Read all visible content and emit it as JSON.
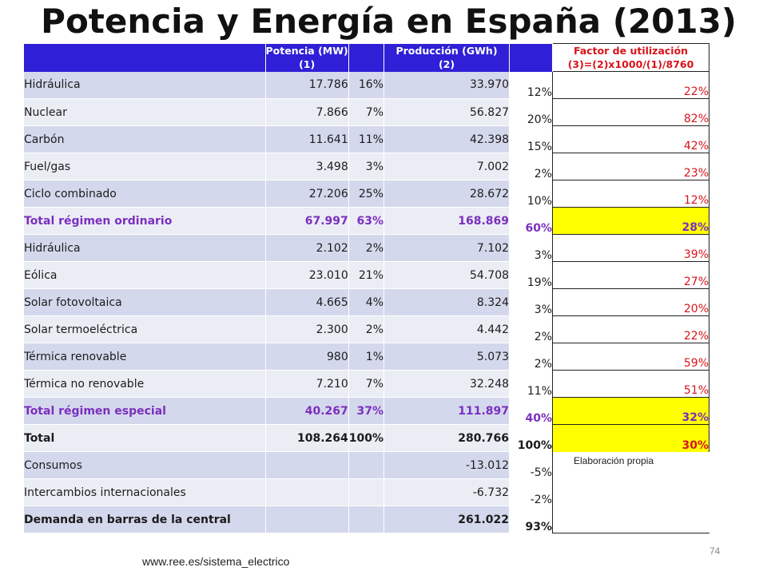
{
  "title": "Potencia y Energía en España (2013)",
  "header": {
    "col1": "",
    "potencia_line1": "Potencia (MW)",
    "potencia_line2": "(1)",
    "produccion_line1": "Producción (GWh)",
    "produccion_line2": "(2)",
    "factor_line1": "Factor de utilización",
    "factor_line2": "(3)=(2)x1000/(1)/8760"
  },
  "rows": [
    {
      "label": "Hidráulica",
      "mw": "17.786",
      "mw_pct": "16%",
      "gwh": "33.970",
      "gwh_pct": "12%",
      "factor": "22%"
    },
    {
      "label": "Nuclear",
      "mw": "7.866",
      "mw_pct": "7%",
      "gwh": "56.827",
      "gwh_pct": "20%",
      "factor": "82%"
    },
    {
      "label": "Carbón",
      "mw": "11.641",
      "mw_pct": "11%",
      "gwh": "42.398",
      "gwh_pct": "15%",
      "factor": "42%"
    },
    {
      "label": "Fuel/gas",
      "mw": "3.498",
      "mw_pct": "3%",
      "gwh": "7.002",
      "gwh_pct": "2%",
      "factor": "23%"
    },
    {
      "label": "Ciclo combinado",
      "mw": "27.206",
      "mw_pct": "25%",
      "gwh": "28.672",
      "gwh_pct": "10%",
      "factor": "12%"
    },
    {
      "label": "Total régimen ordinario",
      "mw": "67.997",
      "mw_pct": "63%",
      "gwh": "168.869",
      "gwh_pct": "60%",
      "factor": "28%"
    },
    {
      "label": "Hidráulica",
      "mw": "2.102",
      "mw_pct": "2%",
      "gwh": "7.102",
      "gwh_pct": "3%",
      "factor": "39%"
    },
    {
      "label": "Eólica",
      "mw": "23.010",
      "mw_pct": "21%",
      "gwh": "54.708",
      "gwh_pct": "19%",
      "factor": "27%"
    },
    {
      "label": "Solar fotovoltaica",
      "mw": "4.665",
      "mw_pct": "4%",
      "gwh": "8.324",
      "gwh_pct": "3%",
      "factor": "20%"
    },
    {
      "label": "Solar termoeléctrica",
      "mw": "2.300",
      "mw_pct": "2%",
      "gwh": "4.442",
      "gwh_pct": "2%",
      "factor": "22%"
    },
    {
      "label": "Térmica renovable",
      "mw": "980",
      "mw_pct": "1%",
      "gwh": "5.073",
      "gwh_pct": "2%",
      "factor": "59%"
    },
    {
      "label": "Térmica no renovable",
      "mw": "7.210",
      "mw_pct": "7%",
      "gwh": "32.248",
      "gwh_pct": "11%",
      "factor": "51%"
    },
    {
      "label": "Total régimen especial",
      "mw": "40.267",
      "mw_pct": "37%",
      "gwh": "111.897",
      "gwh_pct": "40%",
      "factor": "32%"
    },
    {
      "label": "Total",
      "mw": "108.264",
      "mw_pct": "100%",
      "gwh": "280.766",
      "gwh_pct": "100%",
      "factor": "30%"
    },
    {
      "label": "Consumos",
      "mw": "",
      "mw_pct": "",
      "gwh": "-13.012",
      "gwh_pct": "-5%",
      "factor": ""
    },
    {
      "label": "Intercambios internacionales",
      "mw": "",
      "mw_pct": "",
      "gwh": "-6.732",
      "gwh_pct": "-2%",
      "factor": ""
    },
    {
      "label": "Demanda en barras de la central",
      "mw": "",
      "mw_pct": "",
      "gwh": "261.022",
      "gwh_pct": "93%",
      "factor": ""
    }
  ],
  "note": "Elaboración propia",
  "page_number": "74",
  "footer_url": "www.ree.es/sistema_electrico",
  "colors": {
    "header_bg": "#2f1fd6",
    "row_dark": "#d4d8ec",
    "row_light": "#ebedf5",
    "factor_text": "#d8141c",
    "total_text": "#7b2fbe",
    "highlight": "#ffff00"
  }
}
